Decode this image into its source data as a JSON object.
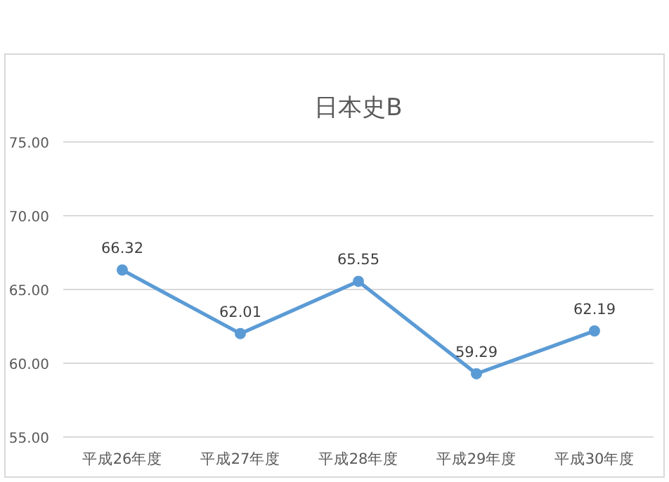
{
  "chart_data": {
    "type": "line",
    "title": "日本史B",
    "categories": [
      "平成26年度",
      "平成27年度",
      "平成28年度",
      "平成29年度",
      "平成30年度"
    ],
    "series": [
      {
        "color": "#5b9bd5",
        "values": [
          66.32,
          62.01,
          65.55,
          59.29,
          62.19
        ]
      }
    ],
    "ylim": [
      55,
      75
    ],
    "yticks": [
      {
        "value": 55,
        "label": "55.00"
      },
      {
        "value": 60,
        "label": "60.00"
      },
      {
        "value": 65,
        "label": "65.00"
      },
      {
        "value": 70,
        "label": "70.00"
      },
      {
        "value": 75,
        "label": "75.00"
      }
    ],
    "grid": "y",
    "marker": "circle",
    "line_style": "solid",
    "data_labels": true
  }
}
